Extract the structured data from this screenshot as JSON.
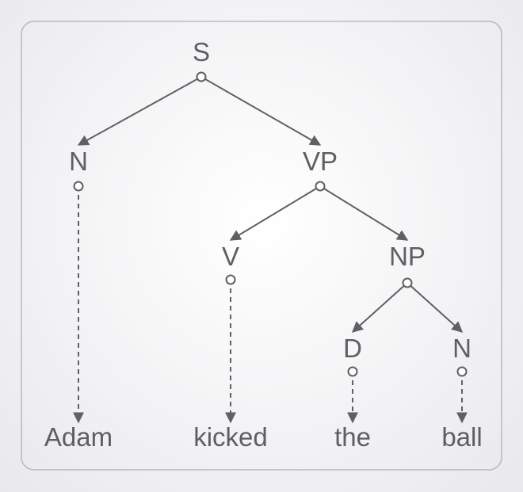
{
  "tree": {
    "nodes": [
      {
        "id": "S",
        "label": "S"
      },
      {
        "id": "N1",
        "label": "N"
      },
      {
        "id": "VP",
        "label": "VP"
      },
      {
        "id": "V",
        "label": "V"
      },
      {
        "id": "NP",
        "label": "NP"
      },
      {
        "id": "D",
        "label": "D"
      },
      {
        "id": "N2",
        "label": "N"
      }
    ],
    "words": [
      {
        "id": "w1",
        "label": "Adam",
        "parent": "N1"
      },
      {
        "id": "w2",
        "label": "kicked",
        "parent": "V"
      },
      {
        "id": "w3",
        "label": "the",
        "parent": "D"
      },
      {
        "id": "w4",
        "label": "ball",
        "parent": "N2"
      }
    ],
    "edges": [
      {
        "from": "S",
        "to": "N1"
      },
      {
        "from": "S",
        "to": "VP"
      },
      {
        "from": "VP",
        "to": "V"
      },
      {
        "from": "VP",
        "to": "NP"
      },
      {
        "from": "NP",
        "to": "D"
      },
      {
        "from": "NP",
        "to": "N2"
      }
    ]
  }
}
